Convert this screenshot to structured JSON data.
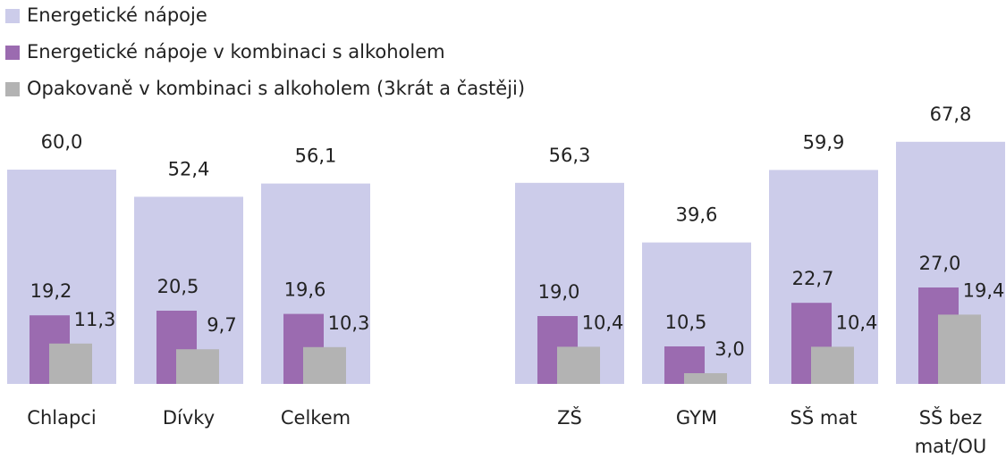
{
  "chart_data": {
    "type": "bar",
    "categories": [
      "Chlapci",
      "Dívky",
      "Celkem",
      null,
      "ZŠ",
      "GYM",
      "SŠ mat",
      "SŠ bez mat/OU"
    ],
    "series": [
      {
        "name": "Energetické nápoje",
        "color": "#ccccea",
        "values": [
          60.0,
          52.4,
          56.1,
          null,
          56.3,
          39.6,
          59.9,
          67.8
        ],
        "value_labels": [
          "60,0",
          "52,4",
          "56,1",
          null,
          "56,3",
          "39,6",
          "59,9",
          "67,8"
        ]
      },
      {
        "name": "Energetické nápoje v kombinaci s alkoholem",
        "color": "#9b6bb0",
        "values": [
          19.2,
          20.5,
          19.6,
          null,
          19.0,
          10.5,
          22.7,
          27.0
        ],
        "value_labels": [
          "19,2",
          "20,5",
          "19,6",
          null,
          "19,0",
          "10,5",
          "22,7",
          "27,0"
        ]
      },
      {
        "name": "Opakovaně v kombinaci s alkoholem (3krát a častěji)",
        "color": "#b3b3b3",
        "values": [
          11.3,
          9.7,
          10.3,
          null,
          10.4,
          3.0,
          10.4,
          19.4
        ],
        "value_labels": [
          "11,3",
          "9,7",
          "10,3",
          null,
          "10,4",
          "3,0",
          "10,4",
          "19,4"
        ]
      }
    ]
  }
}
